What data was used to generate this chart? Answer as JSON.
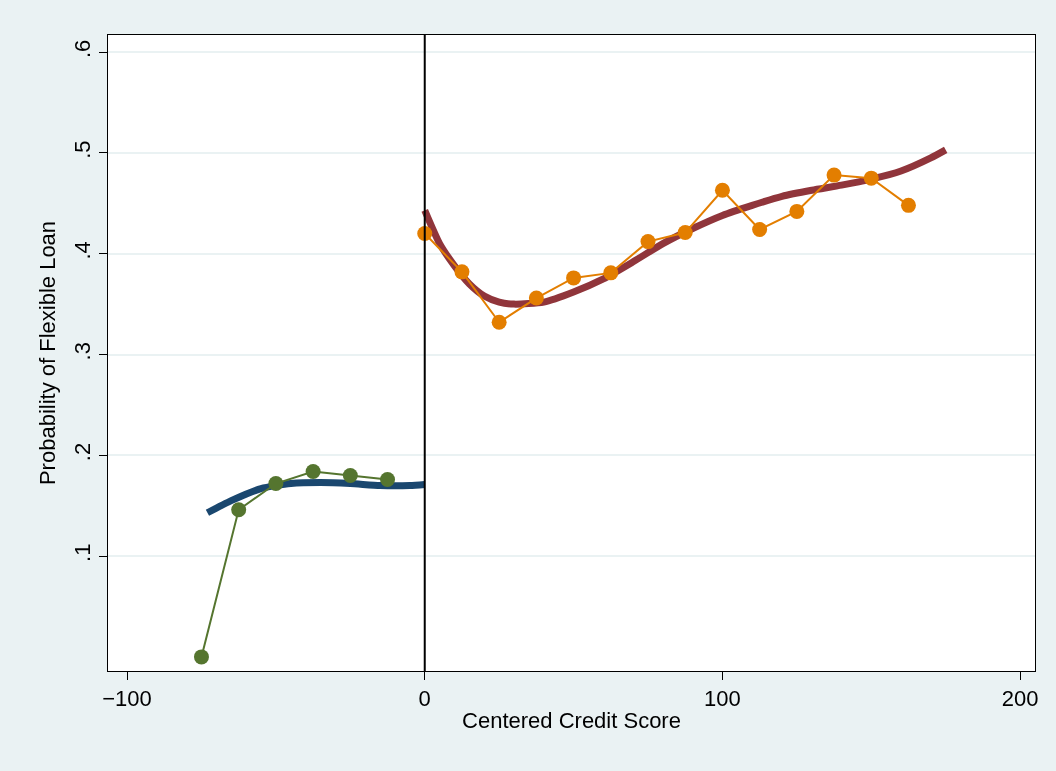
{
  "chart_data": {
    "type": "line",
    "xlabel": "Centered Credit Score",
    "ylabel": "Probability of Flexible Loan",
    "xlim": [
      -106.4,
      205
    ],
    "xticks": [
      -100,
      0,
      100,
      200
    ],
    "ylim": [
      -0.014,
      0.617
    ],
    "yticks": [
      {
        "value": 0.1,
        "label": ".1"
      },
      {
        "value": 0.2,
        "label": ".2"
      },
      {
        "value": 0.3,
        "label": ".3"
      },
      {
        "value": 0.4,
        "label": ".4"
      },
      {
        "value": 0.5,
        "label": ".5"
      },
      {
        "value": 0.6,
        "label": ".6"
      }
    ],
    "grid": "y",
    "ref_lines": [
      {
        "axis": "x",
        "value": 0,
        "color": "#000000"
      }
    ],
    "series": [
      {
        "marker": "none",
        "color": "#1a476f",
        "x": [
          -73,
          -65,
          -55,
          -45,
          -35,
          -25,
          -15,
          -5,
          0
        ],
        "values": [
          0.143,
          0.155,
          0.167,
          0.172,
          0.173,
          0.172,
          0.17,
          0.17,
          0.171
        ]
      },
      {
        "marker": "none",
        "color": "#90353b",
        "x": [
          0,
          5,
          10,
          15,
          20,
          25,
          30,
          40,
          50,
          60,
          70,
          80,
          90,
          100,
          110,
          120,
          130,
          140,
          150,
          160,
          170,
          175
        ],
        "values": [
          0.443,
          0.41,
          0.388,
          0.37,
          0.358,
          0.352,
          0.35,
          0.352,
          0.362,
          0.375,
          0.392,
          0.41,
          0.425,
          0.438,
          0.448,
          0.457,
          0.463,
          0.468,
          0.474,
          0.482,
          0.495,
          0.503
        ]
      },
      {
        "marker": "circle",
        "color": "#55752f",
        "x": [
          -75,
          -62.5,
          -50,
          -37.5,
          -25,
          -12.5
        ],
        "values": [
          0.0,
          0.146,
          0.172,
          0.184,
          0.18,
          0.176
        ]
      },
      {
        "marker": "circle",
        "color": "#e37e00",
        "x": [
          0,
          12.5,
          25,
          37.5,
          50,
          62.5,
          75,
          87.5,
          100,
          112.5,
          125,
          137.5,
          150,
          162.5
        ],
        "values": [
          0.42,
          0.382,
          0.332,
          0.356,
          0.376,
          0.381,
          0.412,
          0.421,
          0.463,
          0.424,
          0.442,
          0.478,
          0.475,
          0.448
        ]
      }
    ]
  }
}
